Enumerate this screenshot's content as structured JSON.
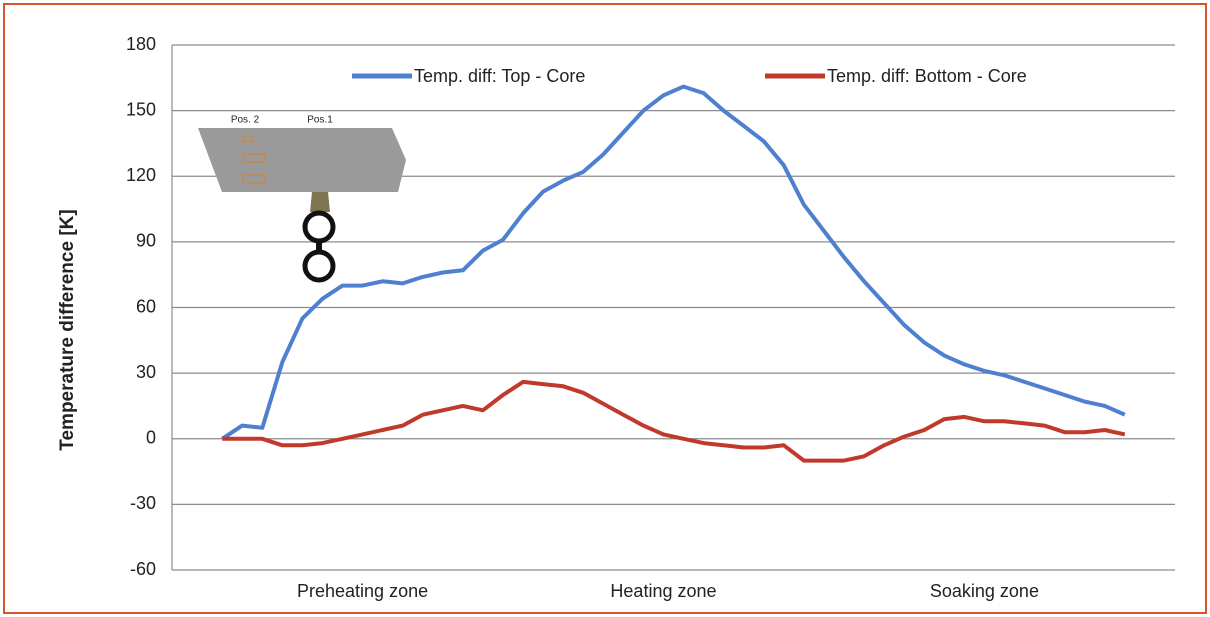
{
  "chart_data": {
    "type": "line",
    "y_label": "Temperature difference [K]",
    "categories": [
      null,
      null,
      null,
      null,
      null,
      null,
      null,
      null,
      null,
      "Preheating zone",
      null,
      null,
      null,
      null,
      null,
      null,
      null,
      null,
      null,
      null,
      null,
      null,
      null,
      null,
      "Heating zone",
      null,
      null,
      null,
      null,
      null,
      null,
      null,
      null,
      null,
      null,
      null,
      null,
      null,
      null,
      null,
      "Soaking zone",
      null,
      null,
      null,
      null,
      null,
      null,
      null,
      null,
      null
    ],
    "series": [
      {
        "name": "Temp. diff: Top - Core",
        "color": "#4f7fcf",
        "values": [
          null,
          null,
          0,
          6,
          5,
          35,
          55,
          64,
          70,
          70,
          72,
          71,
          74,
          76,
          77,
          86,
          91,
          103,
          113,
          118,
          122,
          130,
          140,
          150,
          157,
          161,
          158,
          150,
          143,
          136,
          125,
          107,
          95,
          83,
          72,
          62,
          52,
          44,
          38,
          34,
          31,
          29,
          26,
          23,
          20,
          17,
          15,
          11,
          null,
          null
        ]
      },
      {
        "name": "Temp. diff: Bottom - Core",
        "color": "#c0392b",
        "values": [
          null,
          null,
          0,
          0,
          0,
          -3,
          -3,
          -2,
          0,
          2,
          4,
          6,
          11,
          13,
          15,
          13,
          20,
          26,
          25,
          24,
          21,
          16,
          11,
          6,
          2,
          0,
          -2,
          -3,
          -4,
          -4,
          -3,
          -10,
          -10,
          -10,
          -8,
          -3,
          1,
          4,
          9,
          10,
          8,
          8,
          7,
          6,
          3,
          3,
          4,
          2,
          null,
          null
        ]
      }
    ],
    "ylim": [
      -60,
      180
    ],
    "yticks": [
      -60,
      -30,
      0,
      30,
      60,
      90,
      120,
      150,
      180
    ],
    "grid": true,
    "legend": "top",
    "annotations": [
      "Pos. 2",
      "Pos.1"
    ]
  }
}
